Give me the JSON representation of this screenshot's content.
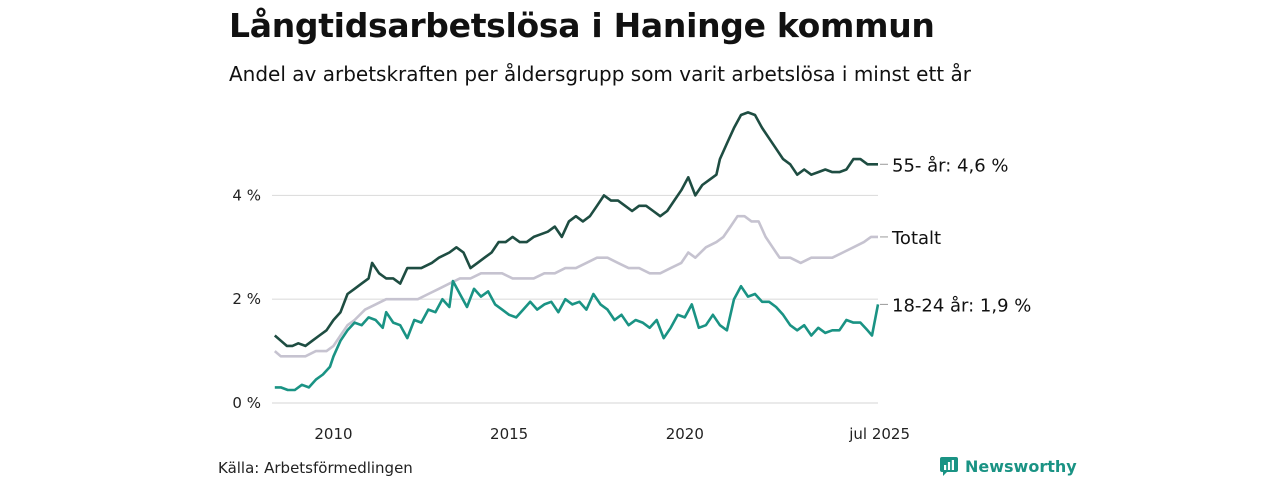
{
  "title": "Långtidsarbetslösa i Haninge kommun",
  "subtitle": "Andel av arbetskraften per åldersgrupp som varit arbetslösa i minst ett år",
  "source": "Källa: Arbetsförmedlingen",
  "brand": {
    "name": "Newsworthy",
    "icon": "newsworthy-logo-icon",
    "color": "#1a9384"
  },
  "chart_data": {
    "type": "line",
    "title": "Långtidsarbetslösa i Haninge kommun",
    "subtitle": "Andel av arbetskraften per åldersgrupp som varit arbetslösa i minst ett år",
    "xlabel": "",
    "ylabel": "",
    "x_ticks": [
      "2010",
      "2015",
      "2020",
      "jul 2025"
    ],
    "y_ticks": [
      "0 %",
      "2 %",
      "4 %"
    ],
    "xlim": [
      2008.25,
      2025.5
    ],
    "ylim": [
      0,
      5.8
    ],
    "grid": true,
    "legend": "end-labels",
    "series": [
      {
        "name": "55- år",
        "end_label": "55- år: 4,6 %",
        "color": "#1e4d42",
        "points": [
          [
            2008.33,
            1.3
          ],
          [
            2008.5,
            1.2
          ],
          [
            2008.67,
            1.1
          ],
          [
            2008.83,
            1.1
          ],
          [
            2009.0,
            1.15
          ],
          [
            2009.2,
            1.1
          ],
          [
            2009.4,
            1.2
          ],
          [
            2009.6,
            1.3
          ],
          [
            2009.8,
            1.4
          ],
          [
            2010.0,
            1.6
          ],
          [
            2010.2,
            1.75
          ],
          [
            2010.4,
            2.1
          ],
          [
            2010.6,
            2.2
          ],
          [
            2010.8,
            2.3
          ],
          [
            2011.0,
            2.4
          ],
          [
            2011.1,
            2.7
          ],
          [
            2011.3,
            2.5
          ],
          [
            2011.5,
            2.4
          ],
          [
            2011.7,
            2.4
          ],
          [
            2011.9,
            2.3
          ],
          [
            2012.1,
            2.6
          ],
          [
            2012.3,
            2.6
          ],
          [
            2012.5,
            2.6
          ],
          [
            2012.8,
            2.7
          ],
          [
            2013.0,
            2.8
          ],
          [
            2013.3,
            2.9
          ],
          [
            2013.5,
            3.0
          ],
          [
            2013.7,
            2.9
          ],
          [
            2013.9,
            2.6
          ],
          [
            2014.1,
            2.7
          ],
          [
            2014.3,
            2.8
          ],
          [
            2014.5,
            2.9
          ],
          [
            2014.7,
            3.1
          ],
          [
            2014.9,
            3.1
          ],
          [
            2015.1,
            3.2
          ],
          [
            2015.3,
            3.1
          ],
          [
            2015.5,
            3.1
          ],
          [
            2015.7,
            3.2
          ],
          [
            2015.9,
            3.25
          ],
          [
            2016.1,
            3.3
          ],
          [
            2016.3,
            3.4
          ],
          [
            2016.5,
            3.2
          ],
          [
            2016.7,
            3.5
          ],
          [
            2016.9,
            3.6
          ],
          [
            2017.1,
            3.5
          ],
          [
            2017.3,
            3.6
          ],
          [
            2017.5,
            3.8
          ],
          [
            2017.7,
            4.0
          ],
          [
            2017.9,
            3.9
          ],
          [
            2018.1,
            3.9
          ],
          [
            2018.3,
            3.8
          ],
          [
            2018.5,
            3.7
          ],
          [
            2018.7,
            3.8
          ],
          [
            2018.9,
            3.8
          ],
          [
            2019.1,
            3.7
          ],
          [
            2019.3,
            3.6
          ],
          [
            2019.5,
            3.7
          ],
          [
            2019.7,
            3.9
          ],
          [
            2019.9,
            4.1
          ],
          [
            2020.1,
            4.35
          ],
          [
            2020.3,
            4.0
          ],
          [
            2020.5,
            4.2
          ],
          [
            2020.7,
            4.3
          ],
          [
            2020.9,
            4.4
          ],
          [
            2021.0,
            4.7
          ],
          [
            2021.2,
            5.0
          ],
          [
            2021.4,
            5.3
          ],
          [
            2021.6,
            5.55
          ],
          [
            2021.8,
            5.6
          ],
          [
            2022.0,
            5.55
          ],
          [
            2022.2,
            5.3
          ],
          [
            2022.4,
            5.1
          ],
          [
            2022.6,
            4.9
          ],
          [
            2022.8,
            4.7
          ],
          [
            2023.0,
            4.6
          ],
          [
            2023.2,
            4.4
          ],
          [
            2023.4,
            4.5
          ],
          [
            2023.6,
            4.4
          ],
          [
            2023.8,
            4.45
          ],
          [
            2024.0,
            4.5
          ],
          [
            2024.2,
            4.45
          ],
          [
            2024.4,
            4.45
          ],
          [
            2024.6,
            4.5
          ],
          [
            2024.8,
            4.7
          ],
          [
            2025.0,
            4.7
          ],
          [
            2025.2,
            4.6
          ],
          [
            2025.33,
            4.6
          ],
          [
            2025.5,
            4.6
          ]
        ]
      },
      {
        "name": "Totalt",
        "end_label": "Totalt",
        "color": "#c6c3d0",
        "points": [
          [
            2008.33,
            1.0
          ],
          [
            2008.5,
            0.9
          ],
          [
            2008.8,
            0.9
          ],
          [
            2009.2,
            0.9
          ],
          [
            2009.5,
            1.0
          ],
          [
            2009.8,
            1.0
          ],
          [
            2010.0,
            1.1
          ],
          [
            2010.2,
            1.3
          ],
          [
            2010.4,
            1.5
          ],
          [
            2010.6,
            1.6
          ],
          [
            2010.9,
            1.8
          ],
          [
            2011.2,
            1.9
          ],
          [
            2011.5,
            2.0
          ],
          [
            2011.8,
            2.0
          ],
          [
            2012.1,
            2.0
          ],
          [
            2012.4,
            2.0
          ],
          [
            2012.7,
            2.1
          ],
          [
            2013.0,
            2.2
          ],
          [
            2013.3,
            2.3
          ],
          [
            2013.6,
            2.4
          ],
          [
            2013.9,
            2.4
          ],
          [
            2014.2,
            2.5
          ],
          [
            2014.5,
            2.5
          ],
          [
            2014.8,
            2.5
          ],
          [
            2015.1,
            2.4
          ],
          [
            2015.4,
            2.4
          ],
          [
            2015.7,
            2.4
          ],
          [
            2016.0,
            2.5
          ],
          [
            2016.3,
            2.5
          ],
          [
            2016.6,
            2.6
          ],
          [
            2016.9,
            2.6
          ],
          [
            2017.2,
            2.7
          ],
          [
            2017.5,
            2.8
          ],
          [
            2017.8,
            2.8
          ],
          [
            2018.1,
            2.7
          ],
          [
            2018.4,
            2.6
          ],
          [
            2018.7,
            2.6
          ],
          [
            2019.0,
            2.5
          ],
          [
            2019.3,
            2.5
          ],
          [
            2019.6,
            2.6
          ],
          [
            2019.9,
            2.7
          ],
          [
            2020.1,
            2.9
          ],
          [
            2020.3,
            2.8
          ],
          [
            2020.6,
            3.0
          ],
          [
            2020.9,
            3.1
          ],
          [
            2021.1,
            3.2
          ],
          [
            2021.3,
            3.4
          ],
          [
            2021.5,
            3.6
          ],
          [
            2021.7,
            3.6
          ],
          [
            2021.9,
            3.5
          ],
          [
            2022.1,
            3.5
          ],
          [
            2022.3,
            3.2
          ],
          [
            2022.5,
            3.0
          ],
          [
            2022.7,
            2.8
          ],
          [
            2023.0,
            2.8
          ],
          [
            2023.3,
            2.7
          ],
          [
            2023.6,
            2.8
          ],
          [
            2023.9,
            2.8
          ],
          [
            2024.2,
            2.8
          ],
          [
            2024.5,
            2.9
          ],
          [
            2024.8,
            3.0
          ],
          [
            2025.1,
            3.1
          ],
          [
            2025.3,
            3.2
          ],
          [
            2025.5,
            3.2
          ]
        ]
      },
      {
        "name": "18-24 år",
        "end_label": "18-24 år: 1,9 %",
        "color": "#1a9384",
        "points": [
          [
            2008.33,
            0.3
          ],
          [
            2008.5,
            0.3
          ],
          [
            2008.7,
            0.25
          ],
          [
            2008.9,
            0.25
          ],
          [
            2009.1,
            0.35
          ],
          [
            2009.3,
            0.3
          ],
          [
            2009.5,
            0.45
          ],
          [
            2009.7,
            0.55
          ],
          [
            2009.9,
            0.7
          ],
          [
            2010.0,
            0.9
          ],
          [
            2010.2,
            1.2
          ],
          [
            2010.4,
            1.4
          ],
          [
            2010.6,
            1.55
          ],
          [
            2010.8,
            1.5
          ],
          [
            2011.0,
            1.65
          ],
          [
            2011.2,
            1.6
          ],
          [
            2011.4,
            1.45
          ],
          [
            2011.5,
            1.75
          ],
          [
            2011.7,
            1.55
          ],
          [
            2011.9,
            1.5
          ],
          [
            2012.1,
            1.25
          ],
          [
            2012.3,
            1.6
          ],
          [
            2012.5,
            1.55
          ],
          [
            2012.7,
            1.8
          ],
          [
            2012.9,
            1.75
          ],
          [
            2013.1,
            2.0
          ],
          [
            2013.3,
            1.85
          ],
          [
            2013.4,
            2.35
          ],
          [
            2013.6,
            2.1
          ],
          [
            2013.8,
            1.85
          ],
          [
            2014.0,
            2.2
          ],
          [
            2014.2,
            2.05
          ],
          [
            2014.4,
            2.15
          ],
          [
            2014.6,
            1.9
          ],
          [
            2014.8,
            1.8
          ],
          [
            2015.0,
            1.7
          ],
          [
            2015.2,
            1.65
          ],
          [
            2015.4,
            1.8
          ],
          [
            2015.6,
            1.95
          ],
          [
            2015.8,
            1.8
          ],
          [
            2016.0,
            1.9
          ],
          [
            2016.2,
            1.95
          ],
          [
            2016.4,
            1.75
          ],
          [
            2016.6,
            2.0
          ],
          [
            2016.8,
            1.9
          ],
          [
            2017.0,
            1.95
          ],
          [
            2017.2,
            1.8
          ],
          [
            2017.4,
            2.1
          ],
          [
            2017.6,
            1.9
          ],
          [
            2017.8,
            1.8
          ],
          [
            2018.0,
            1.6
          ],
          [
            2018.2,
            1.7
          ],
          [
            2018.4,
            1.5
          ],
          [
            2018.6,
            1.6
          ],
          [
            2018.8,
            1.55
          ],
          [
            2019.0,
            1.45
          ],
          [
            2019.2,
            1.6
          ],
          [
            2019.4,
            1.25
          ],
          [
            2019.6,
            1.45
          ],
          [
            2019.8,
            1.7
          ],
          [
            2020.0,
            1.65
          ],
          [
            2020.2,
            1.9
          ],
          [
            2020.4,
            1.45
          ],
          [
            2020.6,
            1.5
          ],
          [
            2020.8,
            1.7
          ],
          [
            2021.0,
            1.5
          ],
          [
            2021.2,
            1.4
          ],
          [
            2021.4,
            2.0
          ],
          [
            2021.6,
            2.25
          ],
          [
            2021.8,
            2.05
          ],
          [
            2022.0,
            2.1
          ],
          [
            2022.2,
            1.95
          ],
          [
            2022.4,
            1.95
          ],
          [
            2022.6,
            1.85
          ],
          [
            2022.8,
            1.7
          ],
          [
            2023.0,
            1.5
          ],
          [
            2023.2,
            1.4
          ],
          [
            2023.4,
            1.5
          ],
          [
            2023.6,
            1.3
          ],
          [
            2023.8,
            1.45
          ],
          [
            2024.0,
            1.35
          ],
          [
            2024.2,
            1.4
          ],
          [
            2024.4,
            1.4
          ],
          [
            2024.6,
            1.6
          ],
          [
            2024.8,
            1.55
          ],
          [
            2025.0,
            1.55
          ],
          [
            2025.2,
            1.4
          ],
          [
            2025.33,
            1.3
          ],
          [
            2025.5,
            1.9
          ]
        ]
      }
    ]
  }
}
